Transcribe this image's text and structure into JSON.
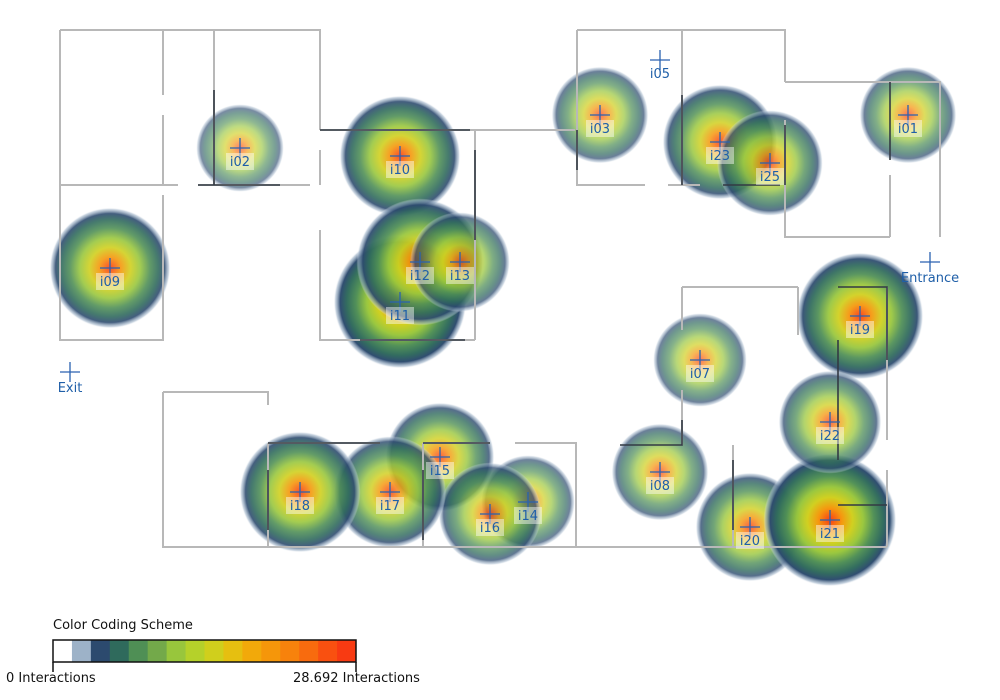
{
  "legend": {
    "title": "Color Coding Scheme",
    "min_label": "0 Interactions",
    "max_label": "28.692 Interactions",
    "colors": [
      "#ffffff",
      "#9db2c8",
      "#2c4a6e",
      "#2f6a5c",
      "#4f8f55",
      "#73a94a",
      "#98c63c",
      "#b5d12a",
      "#d0cf1c",
      "#e6bf10",
      "#f2a90a",
      "#f5960a",
      "#f7820c",
      "#f86b0e",
      "#f95010",
      "#f83a12"
    ]
  },
  "markers": [
    {
      "id": "i01",
      "label": "i01",
      "intensity": 0.35
    },
    {
      "id": "i02",
      "label": "i02",
      "intensity": 0.2
    },
    {
      "id": "i03",
      "label": "i03",
      "intensity": 0.35
    },
    {
      "id": "i05",
      "label": "i05",
      "intensity": 0
    },
    {
      "id": "i07",
      "label": "i07",
      "intensity": 0.3
    },
    {
      "id": "i08",
      "label": "i08",
      "intensity": 0.35
    },
    {
      "id": "i09",
      "label": "i09",
      "intensity": 0.75
    },
    {
      "id": "i10",
      "label": "i10",
      "intensity": 0.75
    },
    {
      "id": "i11",
      "label": "i11",
      "intensity": 0.95
    },
    {
      "id": "i12",
      "label": "i12",
      "intensity": 0.85
    },
    {
      "id": "i13",
      "label": "i13",
      "intensity": 0.4
    },
    {
      "id": "i14",
      "label": "i14",
      "intensity": 0.3
    },
    {
      "id": "i15",
      "label": "i15",
      "intensity": 0.55
    },
    {
      "id": "i16",
      "label": "i16",
      "intensity": 0.45
    },
    {
      "id": "i17",
      "label": "i17",
      "intensity": 0.6
    },
    {
      "id": "i18",
      "label": "i18",
      "intensity": 0.75
    },
    {
      "id": "i19",
      "label": "i19",
      "intensity": 0.85
    },
    {
      "id": "i20",
      "label": "i20",
      "intensity": 0.55
    },
    {
      "id": "i21",
      "label": "i21",
      "intensity": 0.95
    },
    {
      "id": "i22",
      "label": "i22",
      "intensity": 0.45
    },
    {
      "id": "i23",
      "label": "i23",
      "intensity": 0.65
    },
    {
      "id": "i25",
      "label": "i25",
      "intensity": 0.5
    }
  ],
  "waypoints": [
    {
      "id": "entrance",
      "label": "Entrance"
    },
    {
      "id": "exit",
      "label": "Exit"
    }
  ]
}
